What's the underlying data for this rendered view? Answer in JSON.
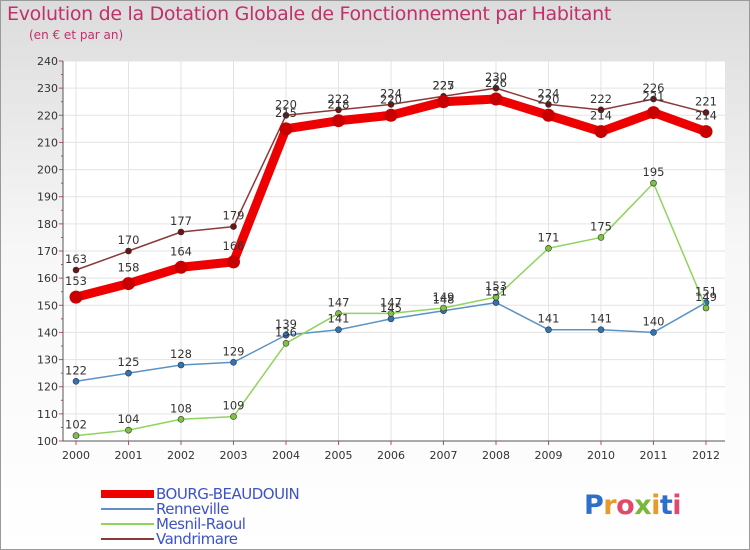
{
  "header": {
    "title": "Evolution de la Dotation Globale de Fonctionnement par Habitant",
    "subtitle": "(en € et par an)"
  },
  "colors": {
    "title": "#c0306a",
    "legend_text": "#3d52c9",
    "axis_text": "#333333",
    "plot_bg": "#ffffff",
    "grid": "#e3e3e3"
  },
  "logo": {
    "text": "Proxiti",
    "letter_colors": [
      "#2f6fc9",
      "#e89a2a",
      "#e04a6a",
      "#7ab83a",
      "#e89a2a",
      "#2f6fc9",
      "#e04a6a"
    ]
  },
  "chart_data": {
    "type": "line",
    "title": "Evolution de la Dotation Globale de Fonctionnement par Habitant",
    "subtitle": "(en € et par an)",
    "xlabel": "",
    "ylabel": "",
    "ylim": [
      100,
      240
    ],
    "yticks": [
      100,
      110,
      120,
      130,
      140,
      150,
      160,
      170,
      180,
      190,
      200,
      210,
      220,
      230,
      240
    ],
    "grid": true,
    "legend_position": "bottom-left",
    "x": [
      "2000",
      "2001",
      "2002",
      "2003",
      "2004",
      "2005",
      "2006",
      "2007",
      "2008",
      "2009",
      "2010",
      "2011",
      "2012"
    ],
    "series": [
      {
        "name": "Vandrimare",
        "color": "#8b3a3a",
        "marker": "#6b1414",
        "values": [
          163,
          170,
          177,
          179,
          220,
          222,
          224,
          227,
          230,
          224,
          222,
          226,
          221
        ]
      },
      {
        "name": "Renneville",
        "color": "#5b93c6",
        "marker": "#2f74b8",
        "values": [
          122,
          125,
          128,
          129,
          139,
          141,
          145,
          148,
          151,
          141,
          141,
          140,
          151
        ]
      },
      {
        "name": "Mesnil-Raoul",
        "color": "#8fd45e",
        "marker": "#7cc43f",
        "values": [
          102,
          104,
          108,
          109,
          136,
          147,
          147,
          149,
          153,
          171,
          175,
          195,
          149
        ]
      },
      {
        "name": "BOURG-BEAUDOUIN",
        "color": "#ee0000",
        "marker": "#c80000",
        "values": [
          153,
          158,
          164,
          166,
          215,
          218,
          220,
          225,
          226,
          220,
          214,
          221,
          214
        ]
      }
    ],
    "legend_order": [
      "BOURG-BEAUDOUIN",
      "Renneville",
      "Mesnil-Raoul",
      "Vandrimare"
    ]
  }
}
